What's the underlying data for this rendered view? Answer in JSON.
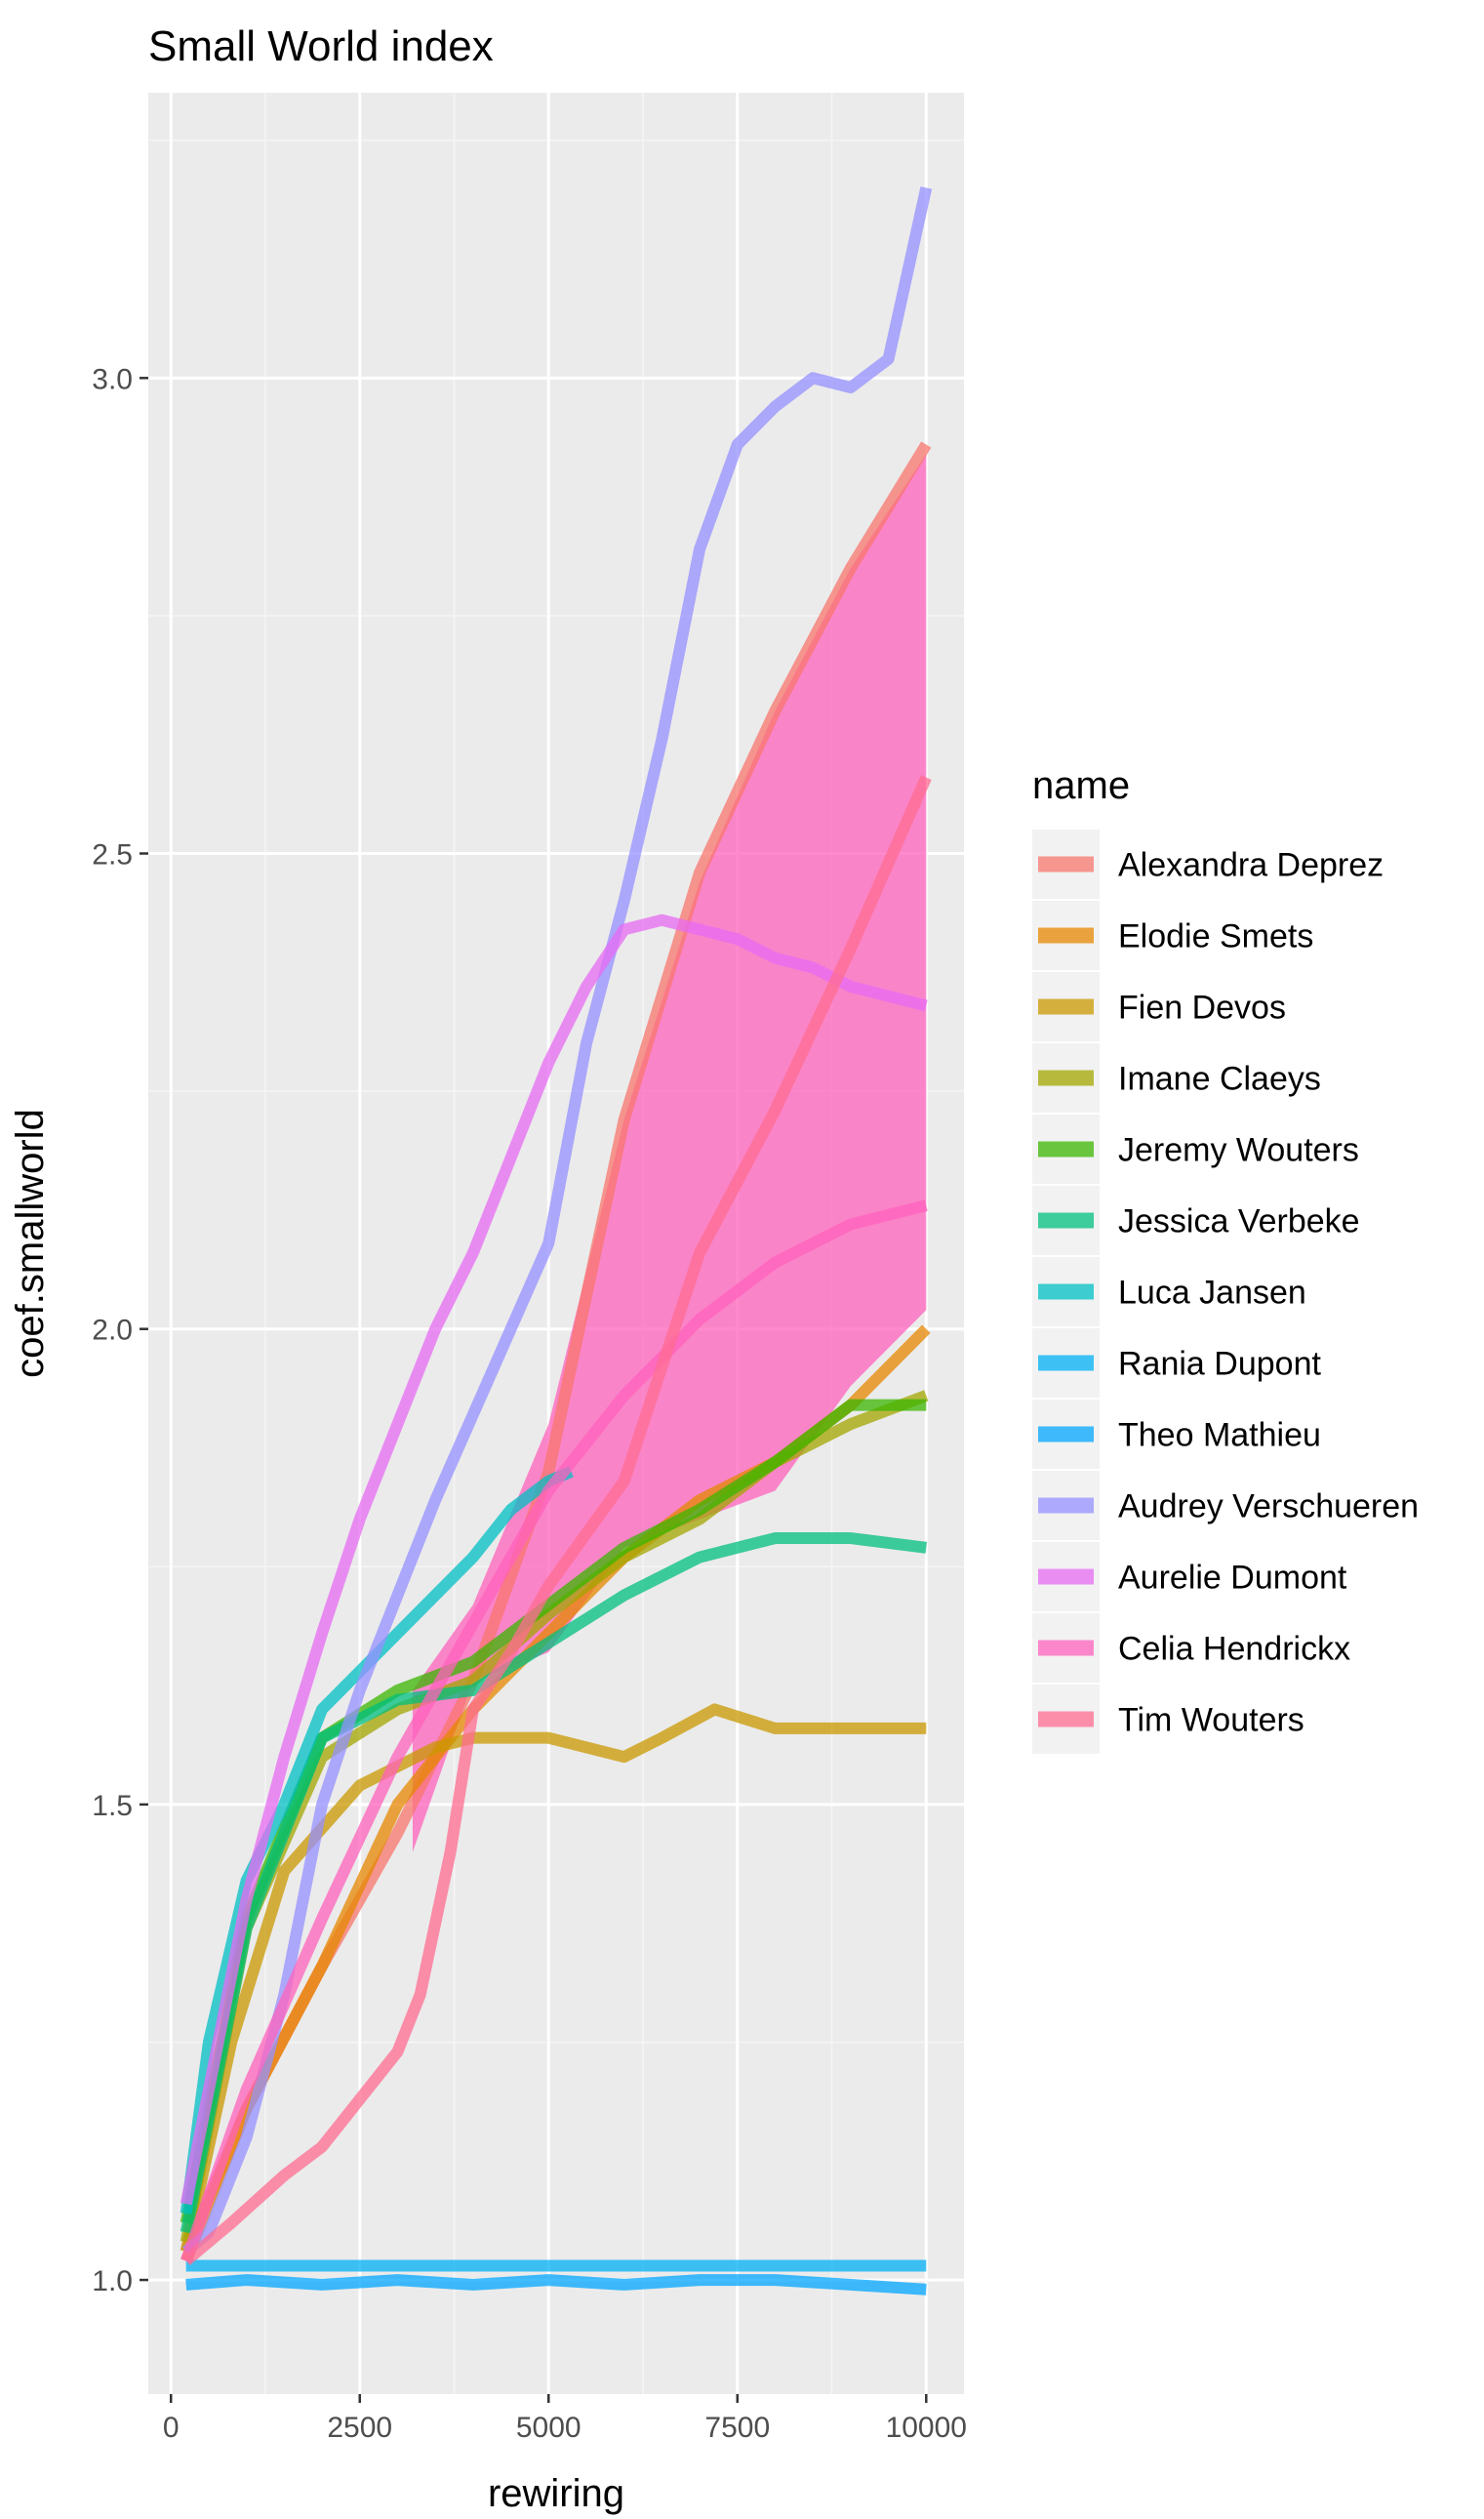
{
  "chart_data": {
    "type": "line",
    "title": "Small World index",
    "xlabel": "rewiring",
    "ylabel": "coef.smallworld",
    "xlim": [
      -300,
      10500
    ],
    "ylim": [
      0.88,
      3.3
    ],
    "xticks": [
      0,
      2500,
      5000,
      7500,
      10000
    ],
    "xtick_labels": [
      "0",
      "2500",
      "5000",
      "7500",
      "10000"
    ],
    "yticks": [
      1.0,
      1.5,
      2.0,
      2.5,
      3.0
    ],
    "ytick_labels": [
      "1.0",
      "1.5",
      "2.0",
      "2.5",
      "3.0"
    ],
    "grid": true,
    "legend_title": "name",
    "legend_position": "right",
    "series": [
      {
        "name": "Alexandra Deprez",
        "color": "#F8766D",
        "x": [
          200,
          1000,
          2000,
          3000,
          4000,
          5000,
          6000,
          7000,
          8000,
          9000,
          10000
        ],
        "y": [
          1.03,
          1.18,
          1.33,
          1.47,
          1.63,
          1.85,
          2.22,
          2.48,
          2.65,
          2.8,
          2.93
        ]
      },
      {
        "name": "Elodie Smets",
        "color": "#E58700",
        "x": [
          200,
          1000,
          2000,
          3000,
          4000,
          5000,
          6000,
          7000,
          8000,
          9000,
          10000
        ],
        "y": [
          1.02,
          1.18,
          1.33,
          1.5,
          1.6,
          1.68,
          1.76,
          1.82,
          1.86,
          1.92,
          2.0
        ]
      },
      {
        "name": "Fien Devos",
        "color": "#C99800",
        "x": [
          200,
          800,
          1500,
          2500,
          3500,
          4000,
          5000,
          6000,
          6500,
          7200,
          8000,
          9000,
          10000
        ],
        "y": [
          1.03,
          1.25,
          1.43,
          1.52,
          1.56,
          1.57,
          1.57,
          1.55,
          1.57,
          1.6,
          1.58,
          1.58,
          1.58
        ]
      },
      {
        "name": "Imane Claeys",
        "color": "#A3A500",
        "x": [
          200,
          1000,
          2000,
          3000,
          4000,
          5000,
          6000,
          7000,
          8000,
          9000,
          10000
        ],
        "y": [
          1.04,
          1.37,
          1.55,
          1.6,
          1.63,
          1.7,
          1.76,
          1.8,
          1.86,
          1.9,
          1.93
        ]
      },
      {
        "name": "Jeremy Wouters",
        "color": "#39B600",
        "x": [
          200,
          1000,
          2000,
          3000,
          4000,
          5000,
          6000,
          7000,
          8000,
          9000,
          10000
        ],
        "y": [
          1.06,
          1.38,
          1.57,
          1.62,
          1.65,
          1.71,
          1.77,
          1.81,
          1.86,
          1.92,
          1.92
        ]
      },
      {
        "name": "Jessica Verbeke",
        "color": "#00BF7D",
        "x": [
          200,
          1000,
          2000,
          3000,
          4000,
          5000,
          6000,
          7000,
          8000,
          9000,
          10000
        ],
        "y": [
          1.05,
          1.37,
          1.57,
          1.61,
          1.62,
          1.67,
          1.72,
          1.76,
          1.78,
          1.78,
          1.77
        ]
      },
      {
        "name": "Luca Jansen",
        "color": "#00BFC4",
        "x": [
          200,
          500,
          1000,
          1500,
          2000,
          3000,
          4000,
          4500,
          5000,
          5300
        ],
        "y": [
          1.07,
          1.25,
          1.42,
          1.5,
          1.6,
          1.68,
          1.76,
          1.81,
          1.84,
          1.85
        ]
      },
      {
        "name": "Rania Dupont",
        "color": "#00B0F6",
        "x": [
          200,
          10000
        ],
        "y": [
          1.015,
          1.015
        ]
      },
      {
        "name": "Theo Mathieu",
        "color": "#00A5FF",
        "x": [
          200,
          1000,
          2000,
          3000,
          4000,
          5000,
          6000,
          7000,
          8000,
          9000,
          10000
        ],
        "y": [
          0.995,
          1.0,
          0.995,
          1.0,
          0.995,
          1.0,
          0.995,
          1.0,
          1.0,
          0.995,
          0.99
        ]
      },
      {
        "name": "Audrey Verschueren",
        "color": "#9590FF",
        "x": [
          200,
          500,
          1000,
          1500,
          2000,
          2500,
          3000,
          3500,
          4000,
          4500,
          5000,
          5500,
          6000,
          6500,
          7000,
          7500,
          8000,
          8500,
          9000,
          9500,
          10000
        ],
        "y": [
          1.03,
          1.05,
          1.15,
          1.3,
          1.5,
          1.62,
          1.72,
          1.82,
          1.91,
          2.0,
          2.09,
          2.3,
          2.45,
          2.62,
          2.82,
          2.93,
          2.97,
          3.0,
          2.99,
          3.02,
          3.2
        ]
      },
      {
        "name": "Aurelie Dumont",
        "color": "#E76BF3",
        "x": [
          200,
          500,
          1000,
          1500,
          2000,
          2500,
          3000,
          3500,
          4000,
          4500,
          5000,
          5500,
          6000,
          6500,
          7000,
          7500,
          8000,
          8500,
          9000,
          9500,
          10000
        ],
        "y": [
          1.08,
          1.2,
          1.4,
          1.55,
          1.68,
          1.8,
          1.9,
          2.0,
          2.08,
          2.18,
          2.28,
          2.36,
          2.42,
          2.43,
          2.42,
          2.41,
          2.39,
          2.38,
          2.36,
          2.35,
          2.34
        ]
      },
      {
        "name": "Celia Hendrickx",
        "color": "#FF62BC",
        "x": [
          200,
          1000,
          2000,
          3000,
          4000,
          5000,
          6000,
          7000,
          8000,
          9000,
          10000
        ],
        "y": [
          1.02,
          1.2,
          1.38,
          1.55,
          1.69,
          1.83,
          1.93,
          2.01,
          2.07,
          2.11,
          2.13
        ]
      },
      {
        "name": "Tim Wouters",
        "color": "#FF6C91",
        "x": [
          200,
          800,
          1500,
          2000,
          2500,
          3000,
          3300,
          3700,
          4000,
          4500,
          5000,
          6000,
          7000,
          8000,
          9000,
          10000
        ],
        "y": [
          1.02,
          1.06,
          1.11,
          1.14,
          1.19,
          1.24,
          1.3,
          1.45,
          1.6,
          1.66,
          1.73,
          1.84,
          2.08,
          2.23,
          2.4,
          2.58
        ]
      }
    ],
    "ribbon": {
      "color": "#FF62BC",
      "x": [
        3200,
        4000,
        5000,
        6000,
        7000,
        8000,
        9000,
        10000
      ],
      "ymin": [
        1.45,
        1.63,
        1.66,
        1.77,
        1.8,
        1.83,
        1.94,
        2.02
      ],
      "ymax": [
        1.62,
        1.71,
        1.9,
        2.22,
        2.47,
        2.65,
        2.8,
        2.92
      ]
    }
  }
}
